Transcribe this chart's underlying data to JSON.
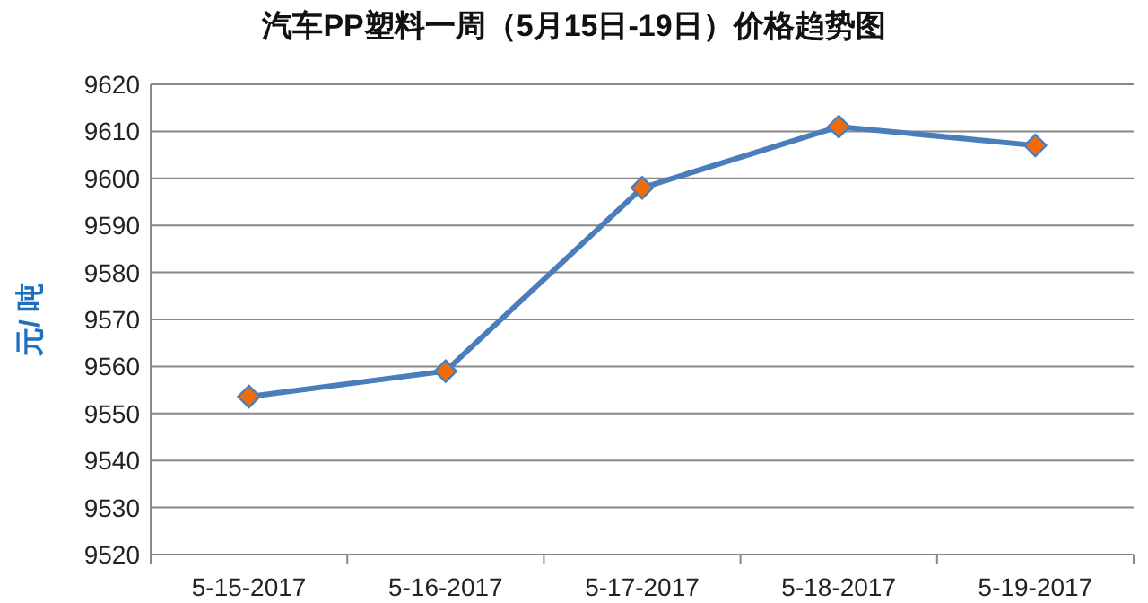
{
  "chart_data": {
    "type": "line",
    "title": "汽车PP塑料一周（5月15日-19日）价格趋势图",
    "ylabel": "元/ 吨",
    "categories": [
      "5-15-2017",
      "5-16-2017",
      "5-17-2017",
      "5-18-2017",
      "5-19-2017"
    ],
    "series": [
      {
        "color": "#4a7ebb",
        "values": [
          9553.6,
          9559,
          9598,
          9611,
          9607
        ]
      }
    ],
    "ylim": [
      9520,
      9620
    ],
    "yticks": [
      9520,
      9530,
      9540,
      9550,
      9560,
      9570,
      9580,
      9590,
      9600,
      9610,
      9620
    ],
    "grid": "y",
    "marker": "diamond"
  }
}
